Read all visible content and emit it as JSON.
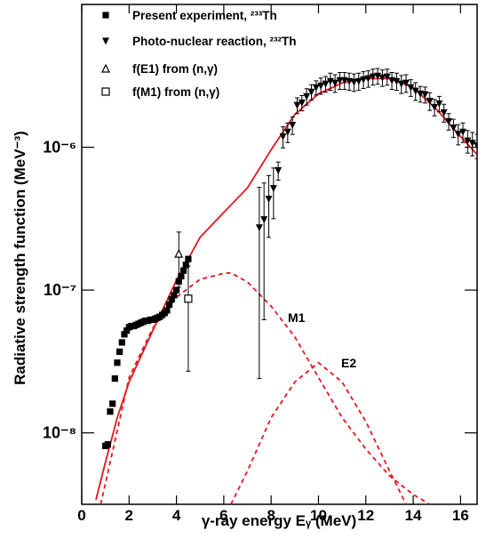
{
  "chart_data": {
    "type": "scatter",
    "xlabel": "γ-ray energy Eᵧ (MeV)",
    "ylabel": "Radiative strength function (MeV⁻³)",
    "xlim": [
      0,
      16.7
    ],
    "ylim": [
      3.16e-09,
      1e-05
    ],
    "ylog": true,
    "xticks": [
      0,
      2,
      4,
      6,
      8,
      10,
      12,
      14,
      16
    ],
    "yticks": [
      {
        "value": 1e-08,
        "label": "10⁻⁸"
      },
      {
        "value": 1e-07,
        "label": "10⁻⁷"
      },
      {
        "value": 1e-06,
        "label": "10⁻⁶"
      }
    ],
    "legend": "top-left",
    "series": [
      {
        "name": "Present experiment, ²³³Th",
        "marker": "square",
        "filled": true,
        "color": "#000000",
        "x": [
          1.0,
          1.1,
          1.2,
          1.3,
          1.4,
          1.5,
          1.6,
          1.7,
          1.8,
          1.9,
          2.0,
          2.1,
          2.2,
          2.3,
          2.4,
          2.5,
          2.6,
          2.7,
          2.8,
          2.9,
          3.0,
          3.1,
          3.2,
          3.3,
          3.4,
          3.5,
          3.6,
          3.7,
          3.8,
          3.9,
          4.0,
          4.1,
          4.2,
          4.3,
          4.4,
          4.5
        ],
        "values": [
          8.1e-09,
          8.3e-09,
          1.41e-08,
          1.6e-08,
          2.4e-08,
          3.1e-08,
          3.7e-08,
          4.3e-08,
          4.9e-08,
          5.2e-08,
          5.5e-08,
          5.6e-08,
          5.6e-08,
          5.7e-08,
          5.8e-08,
          5.9e-08,
          6e-08,
          6.1e-08,
          6.1e-08,
          6.2e-08,
          6.2e-08,
          6.3e-08,
          6.4e-08,
          6.5e-08,
          6.7e-08,
          6.9e-08,
          7.2e-08,
          7.9e-08,
          8.6e-08,
          9.2e-08,
          1e-07,
          1.15e-07,
          1.25e-07,
          1.37e-07,
          1.5e-07,
          1.65e-07
        ]
      },
      {
        "name": "Photo-nuclear reaction, ²³²Th",
        "marker": "triangle-down",
        "filled": true,
        "color": "#000000",
        "x": [
          7.5,
          7.7,
          7.9,
          8.1,
          8.3,
          8.5,
          8.7,
          8.9,
          9.1,
          9.3,
          9.5,
          9.7,
          9.9,
          10.1,
          10.3,
          10.5,
          10.7,
          10.9,
          11.1,
          11.3,
          11.5,
          11.7,
          11.9,
          12.1,
          12.3,
          12.5,
          12.7,
          12.9,
          13.1,
          13.3,
          13.5,
          13.7,
          13.9,
          14.1,
          14.3,
          14.5,
          14.7,
          14.9,
          15.1,
          15.3,
          15.5,
          15.7,
          15.9,
          16.1,
          16.3,
          16.5,
          16.7
        ],
        "values": [
          2.74e-07,
          3.12e-07,
          4.34e-07,
          5.16e-07,
          6.88e-07,
          1.19e-06,
          1.28e-06,
          1.43e-06,
          1.97e-06,
          2.05e-06,
          2.27e-06,
          2.44e-06,
          2.62e-06,
          2.7e-06,
          2.78e-06,
          2.9e-06,
          2.82e-06,
          2.94e-06,
          2.94e-06,
          2.9e-06,
          2.86e-06,
          2.9e-06,
          2.98e-06,
          3.03e-06,
          3.12e-06,
          3.16e-06,
          3.07e-06,
          3.12e-06,
          2.94e-06,
          2.9e-06,
          2.78e-06,
          2.82e-06,
          2.62e-06,
          2.48e-06,
          2.37e-06,
          2.34e-06,
          2.11e-06,
          1.91e-06,
          2.02e-06,
          1.75e-06,
          1.52e-06,
          1.37e-06,
          1.24e-06,
          1.28e-06,
          1.11e-06,
          1.07e-06,
          1.03e-06
        ],
        "errors": [
          2.5e-07,
          2.5e-07,
          2e-07,
          2e-07,
          1e-07,
          2e-07,
          2e-07,
          2e-07,
          2.5e-07,
          2.5e-07,
          3e-07,
          3e-07,
          3e-07,
          3.5e-07,
          3.5e-07,
          4e-07,
          4e-07,
          4e-07,
          4e-07,
          4e-07,
          4e-07,
          4e-07,
          4e-07,
          4e-07,
          4e-07,
          4e-07,
          4e-07,
          4e-07,
          4e-07,
          4e-07,
          4e-07,
          4e-07,
          3.5e-07,
          3.5e-07,
          3e-07,
          3e-07,
          3e-07,
          2.5e-07,
          2.5e-07,
          2.5e-07,
          2e-07,
          2e-07,
          2e-07,
          2e-07,
          2e-07,
          2e-07,
          2e-07
        ]
      },
      {
        "name": "f(E1) from (n,γ)",
        "marker": "triangle-up",
        "filled": false,
        "color": "#000000",
        "x": [
          4.1
        ],
        "values": [
          1.8e-07
        ],
        "errors": [
          7.5e-08
        ]
      },
      {
        "name": "f(M1) from (n,γ)",
        "marker": "square",
        "filled": false,
        "color": "#000000",
        "x": [
          4.5
        ],
        "values": [
          8.7e-08
        ],
        "errors": [
          6e-08
        ]
      }
    ],
    "curves": [
      {
        "color": "#e8141b",
        "dash": false,
        "x": [
          0.6,
          1.0,
          1.5,
          2,
          3,
          4,
          5,
          6,
          7,
          8,
          9,
          10,
          11,
          12,
          13,
          14,
          15,
          16,
          16.7
        ],
        "values": [
          3.4e-09,
          6.2e-09,
          1.28e-08,
          2.27e-08,
          5.2e-08,
          1.17e-07,
          2.34e-07,
          3.5e-07,
          5.2e-07,
          9.6e-07,
          1.7e-06,
          2.37e-06,
          2.82e-06,
          3.03e-06,
          3.03e-06,
          2.62e-06,
          1.83e-06,
          1.19e-06,
          8.9e-07
        ]
      },
      {
        "label": "M1",
        "color": "#e8141b",
        "dash": true,
        "x": [
          0.8,
          1,
          2,
          3,
          4,
          5,
          6,
          6.3,
          7,
          8,
          9,
          10,
          11,
          12,
          13,
          14,
          14.7
        ],
        "values": [
          3.16e-09,
          4.4e-09,
          2.44e-08,
          5.4e-08,
          8.9e-08,
          1.19e-07,
          1.31e-07,
          1.32e-07,
          1.14e-07,
          7.7e-08,
          4.7e-08,
          2.44e-08,
          1.28e-08,
          7.7e-09,
          5e-09,
          3.7e-09,
          3.16e-09
        ]
      },
      {
        "label": "E2",
        "color": "#e8141b",
        "dash": true,
        "x": [
          6.3,
          7,
          8,
          9,
          10,
          11,
          12,
          13,
          13.7
        ],
        "values": [
          3.16e-09,
          5.4e-09,
          1.28e-08,
          2.27e-08,
          3.1e-08,
          2.27e-08,
          1.2e-08,
          5.4e-09,
          3.16e-09
        ]
      }
    ]
  }
}
